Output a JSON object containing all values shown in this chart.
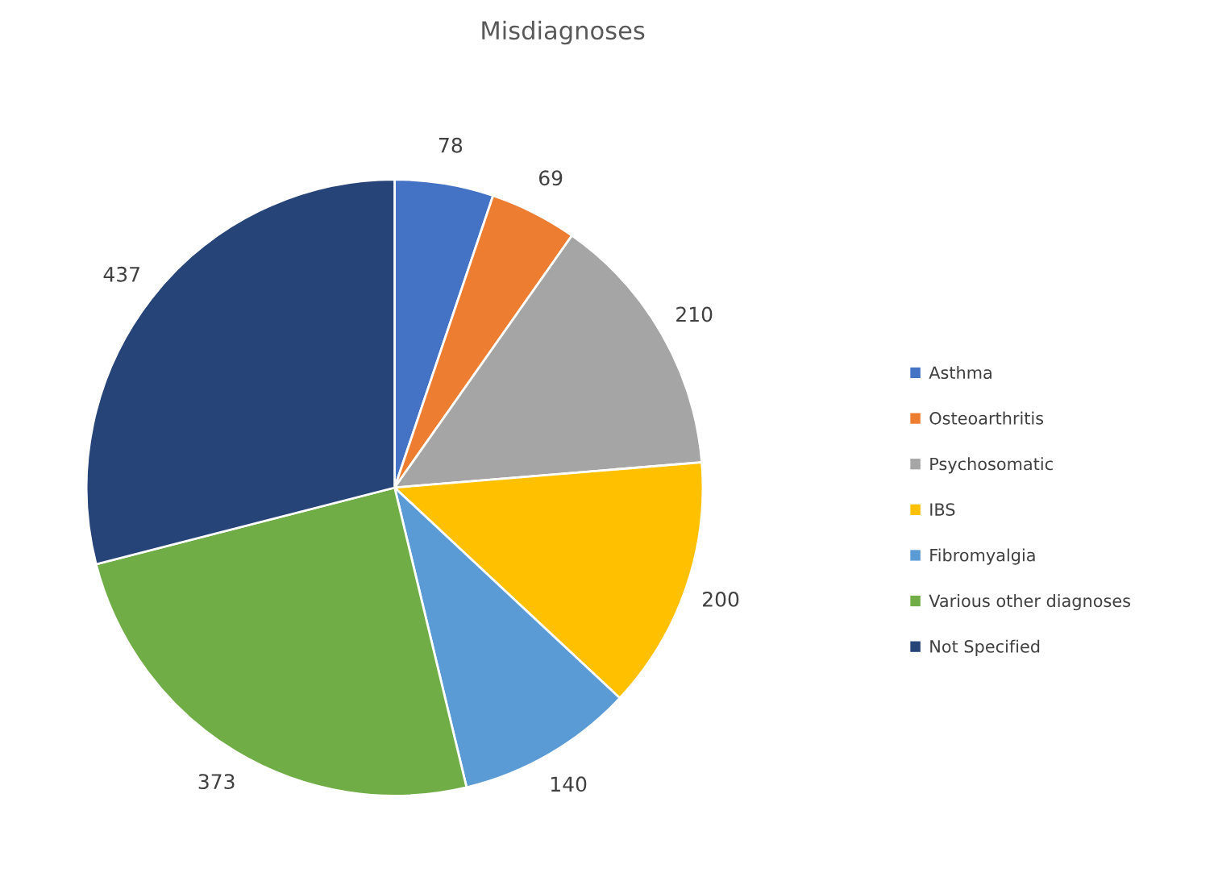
{
  "chart_data": {
    "type": "pie",
    "title": "Misdiagnoses",
    "categories": [
      "Asthma",
      "Osteoarthritis",
      "Psychosomatic",
      "IBS",
      "Fibromyalgia",
      "Various other diagnoses",
      "Not Specified"
    ],
    "values": [
      78,
      69,
      210,
      200,
      140,
      373,
      437
    ],
    "colors": [
      "#4472c4",
      "#ed7d31",
      "#a5a5a5",
      "#ffc000",
      "#5b9bd5",
      "#70ad47",
      "#264478"
    ],
    "data_labels": true,
    "legend": "right"
  }
}
